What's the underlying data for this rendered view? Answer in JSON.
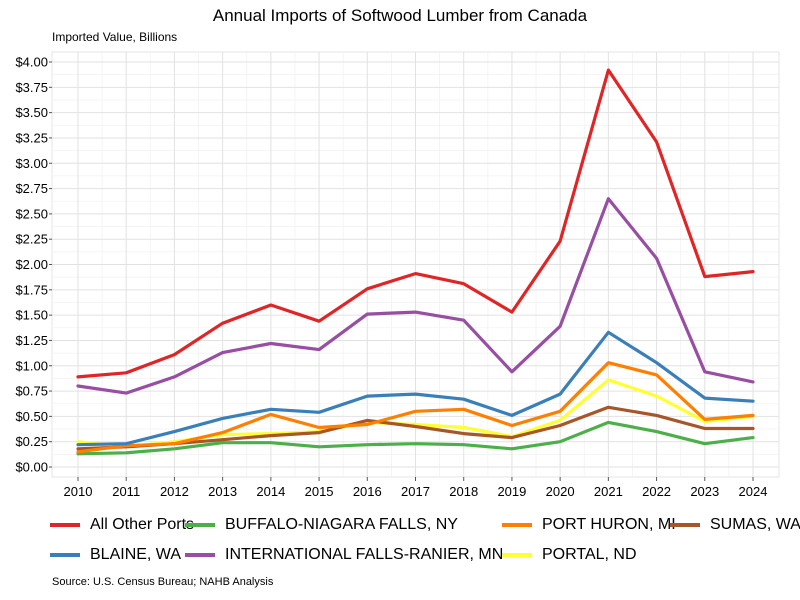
{
  "chart_data": {
    "type": "line",
    "title": "Annual Imports of Softwood Lumber from Canada",
    "ylabel": "Imported Value, Billions",
    "xlabel": "",
    "source": "Source: U.S. Census Bureau; NAHB Analysis",
    "x": [
      2010,
      2011,
      2012,
      2013,
      2014,
      2015,
      2016,
      2017,
      2018,
      2019,
      2020,
      2021,
      2022,
      2023,
      2024
    ],
    "ylim": [
      0,
      4
    ],
    "yticks": [
      0,
      0.25,
      0.5,
      0.75,
      1.0,
      1.25,
      1.5,
      1.75,
      2.0,
      2.25,
      2.5,
      2.75,
      3.0,
      3.25,
      3.5,
      3.75,
      4.0
    ],
    "ytick_labels": [
      "$0.00",
      "$0.25",
      "$0.50",
      "$0.75",
      "$1.00",
      "$1.25",
      "$1.50",
      "$1.75",
      "$2.00",
      "$2.25",
      "$2.50",
      "$2.75",
      "$3.00",
      "$3.25",
      "$3.50",
      "$3.75",
      "$4.00"
    ],
    "grid": true,
    "legend_position": "bottom",
    "series": [
      {
        "name": "All Other Ports",
        "color": "#e02527",
        "values": [
          0.89,
          0.93,
          1.11,
          1.42,
          1.6,
          1.44,
          1.76,
          1.91,
          1.81,
          1.53,
          2.23,
          3.92,
          3.21,
          1.88,
          1.93
        ]
      },
      {
        "name": "BLAINE, WA",
        "color": "#3a7fb8",
        "values": [
          0.22,
          0.23,
          0.35,
          0.48,
          0.57,
          0.54,
          0.7,
          0.72,
          0.67,
          0.51,
          0.72,
          1.33,
          1.03,
          0.68,
          0.65
        ]
      },
      {
        "name": "BUFFALO-NIAGARA FALLS, NY",
        "color": "#4daf4a",
        "values": [
          0.13,
          0.14,
          0.18,
          0.24,
          0.24,
          0.2,
          0.22,
          0.23,
          0.22,
          0.18,
          0.25,
          0.44,
          0.35,
          0.23,
          0.29
        ]
      },
      {
        "name": "INTERNATIONAL FALLS-RANIER, MN",
        "color": "#984ea3",
        "values": [
          0.8,
          0.73,
          0.89,
          1.13,
          1.22,
          1.16,
          1.51,
          1.53,
          1.45,
          0.94,
          1.39,
          2.65,
          2.06,
          0.94,
          0.84
        ]
      },
      {
        "name": "PORT HURON, MI",
        "color": "#ff7f00",
        "values": [
          0.15,
          0.21,
          0.23,
          0.34,
          0.52,
          0.39,
          0.42,
          0.55,
          0.57,
          0.41,
          0.55,
          1.03,
          0.91,
          0.47,
          0.51
        ]
      },
      {
        "name": "PORTAL, ND",
        "color": "#ffff33",
        "values": [
          0.25,
          0.2,
          0.25,
          0.32,
          0.33,
          0.35,
          0.44,
          0.42,
          0.39,
          0.3,
          0.46,
          0.86,
          0.7,
          0.45,
          0.5
        ]
      },
      {
        "name": "SUMAS, WA",
        "color": "#a65628",
        "values": [
          0.18,
          0.2,
          0.23,
          0.27,
          0.31,
          0.34,
          0.46,
          0.4,
          0.33,
          0.29,
          0.41,
          0.59,
          0.51,
          0.38,
          0.38
        ]
      }
    ]
  }
}
